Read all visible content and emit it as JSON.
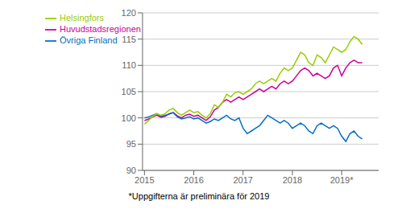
{
  "chart_data": {
    "type": "line",
    "footnote": "*Uppgifterna är preliminära för 2019",
    "x": [
      2015,
      2015.0833333333333,
      2015.1666666666667,
      2015.25,
      2015.3333333333333,
      2015.4166666666667,
      2015.5,
      2015.5833333333333,
      2015.6666666666667,
      2015.75,
      2015.8333333333333,
      2015.9166666666667,
      2016,
      2016.0833333333333,
      2016.1666666666667,
      2016.25,
      2016.3333333333333,
      2016.4166666666667,
      2016.5,
      2016.5833333333333,
      2016.6666666666667,
      2016.75,
      2016.8333333333333,
      2016.9166666666667,
      2017,
      2017.0833333333333,
      2017.1666666666667,
      2017.25,
      2017.3333333333333,
      2017.4166666666667,
      2017.5,
      2017.5833333333333,
      2017.6666666666667,
      2017.75,
      2017.8333333333333,
      2017.9166666666667,
      2018,
      2018.0833333333333,
      2018.1666666666667,
      2018.25,
      2018.3333333333333,
      2018.4166666666667,
      2018.5,
      2018.5833333333333,
      2018.6666666666667,
      2018.75,
      2018.8333333333333,
      2018.9166666666667,
      2019,
      2019.0833333333333,
      2019.1666666666667,
      2019.25,
      2019.3333333333333,
      2019.4166666666667
    ],
    "series": [
      {
        "name": "Huvudstadsregionen",
        "color": "#cc0099",
        "values": [
          99.5,
          99.8,
          100.2,
          100.5,
          100.1,
          100.3,
          100.8,
          101.0,
          100.4,
          100.0,
          100.5,
          100.7,
          100.3,
          100.5,
          100.0,
          99.5,
          100.2,
          101.5,
          102.0,
          103.0,
          103.5,
          103.0,
          103.5,
          104.0,
          103.5,
          104.0,
          104.5,
          105.0,
          105.5,
          105.0,
          105.5,
          106.0,
          105.5,
          106.5,
          107.0,
          106.5,
          107.0,
          108.0,
          109.0,
          109.5,
          109.0,
          108.0,
          108.5,
          108.0,
          107.5,
          108.0,
          109.5,
          110.0,
          108.0,
          109.5,
          110.5,
          111.0,
          110.5,
          110.5
        ]
      },
      {
        "name": "Övriga Finland",
        "color": "#0070c0",
        "values": [
          100.0,
          100.2,
          100.5,
          100.8,
          100.3,
          100.5,
          100.7,
          101.0,
          100.2,
          99.8,
          100.0,
          100.2,
          99.8,
          100.0,
          99.5,
          99.0,
          99.3,
          99.8,
          99.5,
          100.0,
          100.5,
          99.8,
          99.5,
          100.0,
          98.0,
          97.0,
          97.5,
          98.0,
          98.5,
          99.5,
          100.5,
          100.0,
          99.5,
          99.0,
          99.5,
          99.0,
          98.0,
          98.5,
          99.0,
          98.5,
          97.5,
          97.0,
          98.5,
          99.0,
          98.5,
          98.0,
          98.5,
          98.0,
          96.5,
          95.5,
          97.0,
          97.5,
          96.5,
          96.0
        ]
      },
      {
        "name": "Helsingfors",
        "color": "#99cc00",
        "values": [
          98.8,
          99.5,
          100.3,
          100.8,
          100.5,
          100.8,
          101.5,
          101.8,
          101.0,
          100.5,
          101.0,
          101.5,
          101.0,
          101.2,
          100.5,
          100.0,
          100.8,
          102.5,
          102.0,
          103.0,
          104.5,
          104.0,
          104.8,
          105.0,
          104.5,
          105.0,
          105.5,
          106.5,
          107.0,
          106.5,
          107.0,
          107.5,
          107.0,
          108.5,
          109.5,
          109.0,
          109.5,
          111.0,
          112.5,
          112.0,
          110.5,
          110.0,
          112.0,
          111.5,
          110.5,
          112.0,
          113.5,
          113.0,
          112.5,
          113.0,
          114.5,
          115.5,
          115.0,
          114.0
        ]
      }
    ],
    "xlim": [
      2014.96,
      2019.75
    ],
    "xticks": [
      2015,
      2016,
      2017,
      2018,
      {
        "value": 2019,
        "label": "2019*"
      }
    ],
    "ylim": [
      90,
      120
    ],
    "yticks": [
      90,
      95,
      100,
      105,
      110,
      115,
      120
    ],
    "grid": true,
    "legend": "upper left"
  }
}
